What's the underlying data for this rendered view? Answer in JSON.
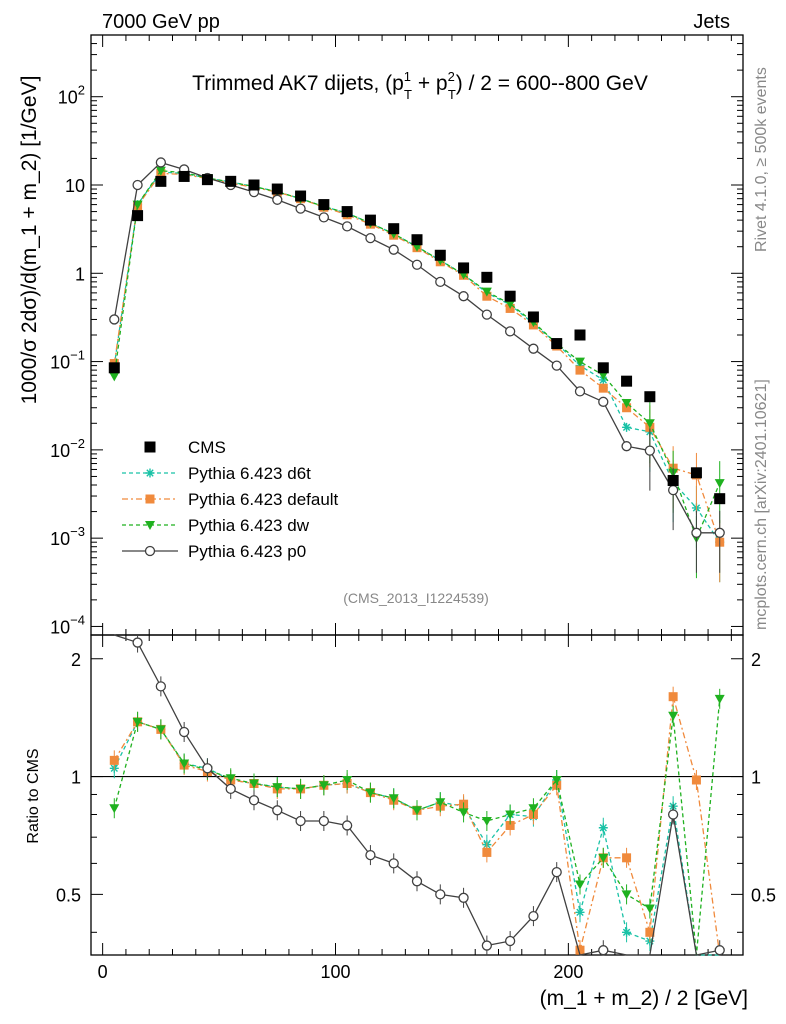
{
  "header": {
    "left": "7000 GeV pp",
    "right": "Jets",
    "side_top": "Rivet 4.1.0, ≥ 500k events",
    "side_bottom": "mcplots.cern.ch [arXiv:2401.10621]"
  },
  "chart_data": {
    "type": "scatter",
    "title": "Trimmed AK7 dijets, (pT1 + pT2) / 2 = 600--800 GeV",
    "title_main": "Trimmed AK7 dijets, (p",
    "title_sub1": "T",
    "title_sup1": "1",
    "title_mid": " + p",
    "title_sub2": "T",
    "title_sup2": "2",
    "title_end": ") / 2 = 600--800 GeV",
    "ylabel": "1000/σ   2dσ)/d(m_1 + m_2) [1/GeV]",
    "xlabel": "(m_1 + m_2) / 2 [GeV]",
    "ratio_ylabel": "Ratio to CMS",
    "analysis_tag": "(CMS_2013_I1224539)",
    "xlim": [
      -5,
      275
    ],
    "ylim": [
      8e-05,
      500
    ],
    "ratio_ylim": [
      0.35,
      2.3
    ],
    "yscale": "log",
    "x_ticks": [
      0,
      100,
      200
    ],
    "y_tick_labels": [
      {
        "value": 0.0001,
        "base": "10",
        "exp": "−4"
      },
      {
        "value": 0.001,
        "base": "10",
        "exp": "−3"
      },
      {
        "value": 0.01,
        "base": "10",
        "exp": "−2"
      },
      {
        "value": 0.1,
        "base": "10",
        "exp": "−1"
      },
      {
        "value": 1,
        "base": "1",
        "exp": ""
      },
      {
        "value": 10,
        "base": "10",
        "exp": ""
      },
      {
        "value": 100,
        "base": "10",
        "exp": "2"
      }
    ],
    "ratio_ticks": [
      "0.5",
      "1",
      "2"
    ],
    "legend_position": "lower-left",
    "x": [
      5,
      15,
      25,
      35,
      45,
      55,
      65,
      75,
      85,
      95,
      105,
      115,
      125,
      135,
      145,
      155,
      165,
      175,
      185,
      195,
      205,
      215,
      225,
      235,
      245,
      255,
      265
    ],
    "series": [
      {
        "name": "CMS",
        "style": "data",
        "color": "#000000",
        "values": [
          0.085,
          4.5,
          11,
          12.5,
          11.5,
          11,
          10,
          9,
          7.5,
          6,
          5,
          4,
          3.2,
          2.4,
          1.6,
          1.15,
          0.9,
          0.55,
          0.32,
          0.16,
          0.2,
          0.085,
          0.06,
          0.04,
          0.0045,
          0.0055,
          0.0028
        ]
      },
      {
        "name": "Pythia 6.423 d6t",
        "style": "star",
        "color": "#19c2a6",
        "values": [
          0.09,
          6,
          14,
          13.5,
          12,
          10.8,
          9.6,
          8.4,
          7,
          5.7,
          4.8,
          3.7,
          2.8,
          2,
          1.4,
          0.97,
          0.6,
          0.44,
          0.27,
          0.16,
          0.09,
          0.062,
          0.018,
          0.016,
          0.0043,
          0.0022,
          0.0009
        ],
        "ratio": [
          1.05,
          1.38,
          1.32,
          1.08,
          1.05,
          0.98,
          0.96,
          0.94,
          0.93,
          0.95,
          0.96,
          0.91,
          0.88,
          0.82,
          0.86,
          0.84,
          0.67,
          0.8,
          0.79,
          0.98,
          0.45,
          0.74,
          0.4,
          0.38,
          0.84,
          0.33,
          0.3
        ]
      },
      {
        "name": "Pythia 6.423 default",
        "style": "square",
        "color": "#f08a3c",
        "values": [
          0.095,
          5.8,
          13.5,
          13.2,
          11.8,
          10.5,
          9.4,
          8.3,
          7,
          5.6,
          4.6,
          3.6,
          2.7,
          1.95,
          1.35,
          0.95,
          0.55,
          0.4,
          0.26,
          0.15,
          0.08,
          0.05,
          0.03,
          0.018,
          0.0062,
          0.0052,
          0.0009
        ],
        "ratio": [
          1.1,
          1.38,
          1.32,
          1.07,
          1.03,
          0.98,
          0.96,
          0.93,
          0.93,
          0.95,
          0.96,
          0.91,
          0.87,
          0.82,
          0.84,
          0.85,
          0.64,
          0.75,
          0.8,
          0.95,
          0.36,
          0.62,
          0.62,
          0.4,
          1.6,
          0.98,
          0.3
        ]
      },
      {
        "name": "Pythia 6.423 dw",
        "style": "triangle",
        "color": "#1fb11f",
        "values": [
          0.068,
          6,
          14.5,
          13.8,
          12,
          10.8,
          9.6,
          8.4,
          7,
          5.7,
          4.8,
          3.7,
          2.8,
          2,
          1.4,
          0.97,
          0.62,
          0.45,
          0.28,
          0.16,
          0.1,
          0.07,
          0.034,
          0.02,
          0.0055,
          0.001,
          0.0042
        ],
        "ratio": [
          0.83,
          1.38,
          1.32,
          1.08,
          1.04,
          0.99,
          0.96,
          0.94,
          0.93,
          0.95,
          0.98,
          0.91,
          0.88,
          0.82,
          0.86,
          0.81,
          0.77,
          0.8,
          0.83,
          0.98,
          0.53,
          0.62,
          0.5,
          0.46,
          1.43,
          0.25,
          1.58
        ]
      },
      {
        "name": "Pythia 6.423 p0",
        "style": "circle",
        "color": "#404040",
        "values": [
          0.3,
          10,
          18,
          15,
          12,
          10,
          8.3,
          6.8,
          5.4,
          4.3,
          3.4,
          2.5,
          1.85,
          1.25,
          0.8,
          0.55,
          0.34,
          0.22,
          0.14,
          0.09,
          0.046,
          0.035,
          0.011,
          0.0098,
          0.0035,
          0.00115,
          0.00115
        ],
        "ratio": [
          3.5,
          2.2,
          1.7,
          1.3,
          1.05,
          0.93,
          0.87,
          0.82,
          0.77,
          0.77,
          0.75,
          0.63,
          0.6,
          0.54,
          0.5,
          0.49,
          0.37,
          0.38,
          0.44,
          0.57,
          0.23,
          0.36,
          0.18,
          0.25,
          0.8,
          0.21,
          0.36
        ]
      }
    ]
  }
}
